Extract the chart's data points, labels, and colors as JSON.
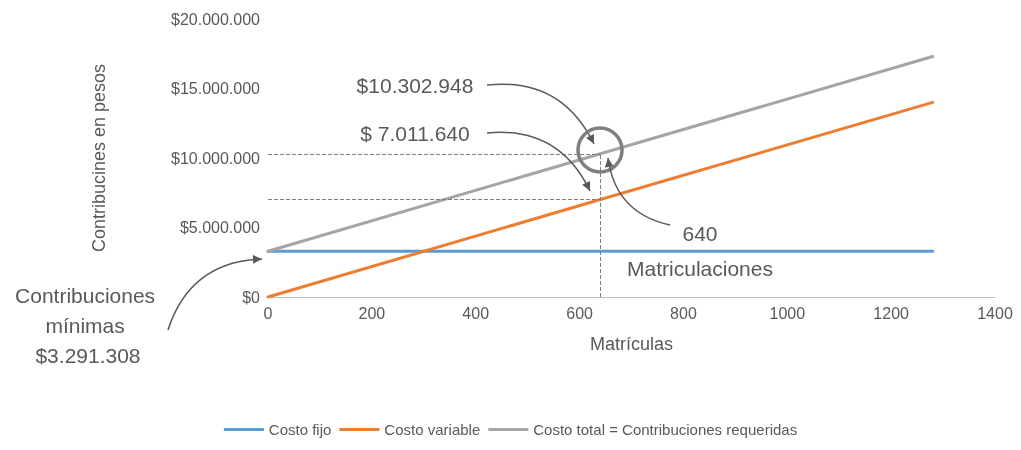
{
  "chart_data": {
    "type": "line",
    "xlabel": "Matrículas",
    "ylabel": "Contribucines en pesos",
    "x": [
      0,
      640,
      1280
    ],
    "series": [
      {
        "name": "Costo fijo",
        "color": "#5b9bd5",
        "values": [
          3291308,
          3291308,
          3291308
        ]
      },
      {
        "name": "Costo variable",
        "color": "#ed7d31",
        "values": [
          0,
          7011640,
          14000000
        ]
      },
      {
        "name": "Costo total = Contribuciones requeridas",
        "color": "#a5a5a5",
        "values": [
          3291308,
          10302948,
          17300000
        ]
      }
    ],
    "xlim": [
      0,
      1400
    ],
    "xticks": [
      0,
      200,
      400,
      600,
      800,
      1000,
      1200,
      1400
    ],
    "ylim": [
      0,
      20000000
    ],
    "yticks": [
      {
        "value": 0,
        "label": "$0"
      },
      {
        "value": 5000000,
        "label": "$5.000.000"
      },
      {
        "value": 10000000,
        "label": "$10.000.000"
      },
      {
        "value": 15000000,
        "label": "$15.000.000"
      },
      {
        "value": 20000000,
        "label": "$20.000.000"
      }
    ],
    "ref_lines": [
      {
        "axis": "y",
        "value": 10302948,
        "color": "#7f7f7f",
        "line_style": "dashed"
      },
      {
        "axis": "y",
        "value": 7011640,
        "color": "#7f7f7f",
        "line_style": "dashed"
      },
      {
        "axis": "x",
        "value": 640,
        "color": "#7f7f7f",
        "line_style": "dashed"
      }
    ],
    "annotations": [
      "$10.302.948",
      "$ 7.011.640",
      "640",
      "Matriculaciones",
      "Contribuciones mínimas $3.291.308"
    ],
    "grid": false,
    "legend": "bottom",
    "marker": "none",
    "line_style": "solid"
  }
}
